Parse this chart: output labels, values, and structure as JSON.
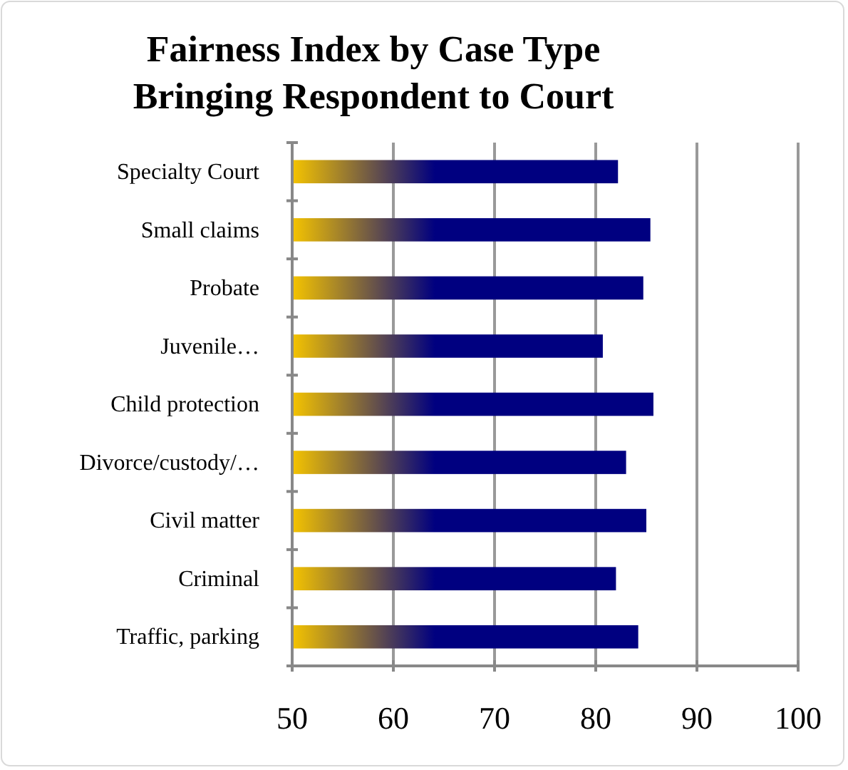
{
  "chart_data": {
    "type": "bar",
    "orientation": "horizontal",
    "title": "Fairness Index by Case Type\nBringing Respondent to Court",
    "categories": [
      "Specialty Court",
      "Small claims",
      "Probate",
      "Juvenile…",
      "Child protection",
      "Divorce/custody/…",
      "Civil matter",
      "Criminal",
      "Traffic, parking"
    ],
    "values": [
      82.2,
      85.4,
      84.7,
      80.7,
      85.7,
      83.0,
      85.0,
      82.0,
      84.2
    ],
    "color": "#000080",
    "xlim": [
      50,
      100
    ],
    "xticks": [
      50,
      60,
      70,
      80,
      90,
      100
    ],
    "grid": "x"
  }
}
